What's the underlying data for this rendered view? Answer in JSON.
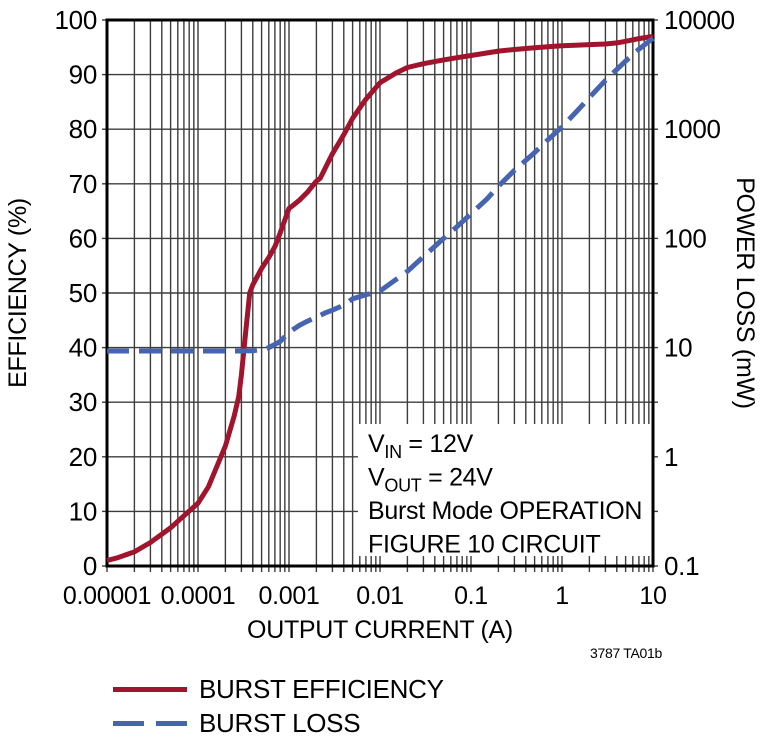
{
  "colors": {
    "efficiency": "#A0142D",
    "loss": "#4664AF",
    "grid": "#3d3d3d",
    "frame": "#000000",
    "background": "#ffffff",
    "text": "#000000"
  },
  "footnote": "3787 TA01b",
  "legend": {
    "items": [
      {
        "label": "BURST EFFICIENCY",
        "style": "solid",
        "color_key": "efficiency"
      },
      {
        "label": "BURST LOSS",
        "style": "dashed",
        "color_key": "loss"
      }
    ]
  },
  "chart_data": {
    "type": "line",
    "xlabel": "OUTPUT CURRENT (A)",
    "x_scale": "log",
    "xlim": [
      1e-05,
      10
    ],
    "x_ticks": [
      {
        "label": "0.00001",
        "value": 1e-05
      },
      {
        "label": "0.0001",
        "value": 0.0001
      },
      {
        "label": "0.001",
        "value": 0.001
      },
      {
        "label": "0.01",
        "value": 0.01
      },
      {
        "label": "0.1",
        "value": 0.1
      },
      {
        "label": "1",
        "value": 1
      },
      {
        "label": "10",
        "value": 10
      }
    ],
    "left_axis": {
      "label": "EFFICIENCY (%)",
      "scale": "linear",
      "lim": [
        0,
        100
      ],
      "ticks": [
        {
          "label": "100",
          "value": 100
        },
        {
          "label": "90",
          "value": 90
        },
        {
          "label": "80",
          "value": 80
        },
        {
          "label": "70",
          "value": 70
        },
        {
          "label": "60",
          "value": 60
        },
        {
          "label": "50",
          "value": 50
        },
        {
          "label": "40",
          "value": 40
        },
        {
          "label": "30",
          "value": 30
        },
        {
          "label": "20",
          "value": 20
        },
        {
          "label": "10",
          "value": 10
        },
        {
          "label": "0",
          "value": 0
        }
      ]
    },
    "right_axis": {
      "label": "POWER LOSS (mW)",
      "scale": "log",
      "lim": [
        0.1,
        10000
      ],
      "ticks": [
        {
          "label": "10000",
          "value": 10000
        },
        {
          "label": "1000",
          "value": 1000
        },
        {
          "label": "100",
          "value": 100
        },
        {
          "label": "10",
          "value": 10
        },
        {
          "label": "1",
          "value": 1
        },
        {
          "label": "0.1",
          "value": 0.1
        }
      ]
    },
    "grid": {
      "vertical": "log-minor-per-decade",
      "horizontal_step_percent": 10
    },
    "legend_position": "bottom-left",
    "annotation": {
      "lines": [
        {
          "main": "V",
          "sub": "IN",
          "rest": " = 12V"
        },
        {
          "main": "V",
          "sub": "OUT",
          "rest": " = 24V"
        },
        {
          "text": "Burst Mode OPERATION"
        },
        {
          "text": "FIGURE 10 CIRCUIT"
        }
      ]
    },
    "series": [
      {
        "name": "BURST EFFICIENCY",
        "axis": "left",
        "units": "%",
        "style": "solid",
        "color_key": "efficiency",
        "points": [
          [
            1e-05,
            1
          ],
          [
            1.3e-05,
            1.5
          ],
          [
            2e-05,
            2.6
          ],
          [
            3e-05,
            4.3
          ],
          [
            5e-05,
            7
          ],
          [
            7e-05,
            9.2
          ],
          [
            0.0001,
            11.5
          ],
          [
            0.00013,
            14.5
          ],
          [
            0.0002,
            22
          ],
          [
            0.00025,
            27.5
          ],
          [
            0.00028,
            31
          ],
          [
            0.0003,
            35
          ],
          [
            0.00033,
            42
          ],
          [
            0.00037,
            50
          ],
          [
            0.0004,
            51.5
          ],
          [
            0.0005,
            54.5
          ],
          [
            0.0006,
            56.5
          ],
          [
            0.0007,
            58.5
          ],
          [
            0.0008,
            61
          ],
          [
            0.001,
            65.5
          ],
          [
            0.0011,
            66
          ],
          [
            0.0013,
            67
          ],
          [
            0.0016,
            68.5
          ],
          [
            0.002,
            70.5
          ],
          [
            0.0022,
            71
          ],
          [
            0.003,
            75.5
          ],
          [
            0.004,
            79
          ],
          [
            0.005,
            82
          ],
          [
            0.007,
            85.5
          ],
          [
            0.01,
            88.5
          ],
          [
            0.015,
            90.3
          ],
          [
            0.02,
            91.3
          ],
          [
            0.03,
            92
          ],
          [
            0.05,
            92.7
          ],
          [
            0.07,
            93.1
          ],
          [
            0.1,
            93.5
          ],
          [
            0.2,
            94.3
          ],
          [
            0.3,
            94.6
          ],
          [
            0.5,
            94.9
          ],
          [
            0.7,
            95.1
          ],
          [
            1,
            95.3
          ],
          [
            1.5,
            95.4
          ],
          [
            2,
            95.5
          ],
          [
            3,
            95.6
          ],
          [
            4,
            95.8
          ],
          [
            5,
            96.1
          ],
          [
            7,
            96.6
          ],
          [
            10,
            97
          ]
        ]
      },
      {
        "name": "BURST LOSS",
        "axis": "right",
        "units": "mW",
        "style": "dashed",
        "color_key": "loss",
        "points": [
          [
            1e-05,
            9.3
          ],
          [
            0.0001,
            9.3
          ],
          [
            0.0002,
            9.3
          ],
          [
            0.0003,
            9.3
          ],
          [
            0.0004,
            9.35
          ],
          [
            0.0005,
            9.6
          ],
          [
            0.0006,
            10
          ],
          [
            0.0007,
            10.7
          ],
          [
            0.0008,
            11.4
          ],
          [
            0.001,
            13.8
          ],
          [
            0.0013,
            16
          ],
          [
            0.0016,
            17.5
          ],
          [
            0.002,
            19
          ],
          [
            0.0025,
            20.8
          ],
          [
            0.003,
            22
          ],
          [
            0.004,
            24.5
          ],
          [
            0.005,
            28
          ],
          [
            0.007,
            30.5
          ],
          [
            0.01,
            33
          ],
          [
            0.015,
            42
          ],
          [
            0.02,
            50
          ],
          [
            0.03,
            68
          ],
          [
            0.05,
            100
          ],
          [
            0.07,
            128
          ],
          [
            0.1,
            168
          ],
          [
            0.15,
            230
          ],
          [
            0.2,
            300
          ],
          [
            0.3,
            420
          ],
          [
            0.5,
            610
          ],
          [
            0.7,
            800
          ],
          [
            1,
            1050
          ],
          [
            1.5,
            1500
          ],
          [
            2,
            1950
          ],
          [
            3,
            2800
          ],
          [
            5,
            4200
          ],
          [
            7,
            5400
          ],
          [
            10,
            6800
          ]
        ]
      }
    ]
  }
}
